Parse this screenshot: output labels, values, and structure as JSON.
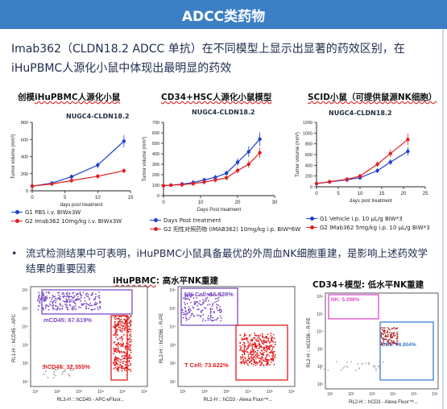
{
  "banner": {
    "title": "ADCC类药物"
  },
  "intro": {
    "line1": "Imab362（CLDN18.2 ADCC 单抗）在不同模型上显示出显著的药效区别，在",
    "line2": "iHuPBMC人源化小鼠中体现出最明显的药效"
  },
  "panels": [
    {
      "title_prefix": "创模",
      "title_underlined": "iHuPBMC人源化小鼠",
      "subtitle": "NUGC4-CLDN18.2",
      "legend": [
        {
          "label": "G1 PBS i.v. BIWx3W",
          "color": "#1f3fd0"
        },
        {
          "label": "G2 Imab362 10mg/kg i.v. BIWx3W",
          "color": "#e02020"
        }
      ]
    },
    {
      "title_prefix": "",
      "title_underlined": "CD34+HSC人源化小鼠模型",
      "subtitle": "NUGC4-CLDN18.2",
      "legend": [
        {
          "label": "Days Post treatment",
          "color": "#1f3fd0"
        },
        {
          "label": "G2 阳性对照药物 (IMAB362)  10mg/kg i.p. BIW*6W",
          "color": "#e02020"
        }
      ]
    },
    {
      "title_prefix": "",
      "title_underlined": "SCID小鼠（可提供鼠源NK细胞）",
      "subtitle": "NUGC4-CLDN18.2",
      "legend": [
        {
          "label": "G1 Vehicle  i.p. 10 μL/g BIW*3",
          "color": "#1f3fd0"
        },
        {
          "label": "G2 IMab362 5mg/kg i.p. 10 μL/g BIW*3",
          "color": "#e02020"
        }
      ]
    }
  ],
  "chart_data": [
    {
      "type": "line",
      "title": "NUGC4-CLDN18.2",
      "xlabel": "days post treatment",
      "ylabel": "Tumor volume (mm³)",
      "x_ticks": [
        "0",
        "5",
        "10",
        "15"
      ],
      "y_ticks": [
        "0",
        "200",
        "400",
        "600",
        "800"
      ],
      "xlim": [
        0,
        15
      ],
      "ylim": [
        0,
        800
      ],
      "series": [
        {
          "name": "G1 PBS i.v. BIWx3W",
          "color": "#1f3fd0",
          "x": [
            0,
            3,
            6,
            10,
            14
          ],
          "y": [
            55,
            90,
            165,
            300,
            580
          ]
        },
        {
          "name": "G2 Imab362 10mg/kg i.v. BIWx3W",
          "color": "#e02020",
          "x": [
            0,
            3,
            6,
            10,
            14
          ],
          "y": [
            55,
            80,
            120,
            170,
            235
          ]
        }
      ]
    },
    {
      "type": "line",
      "title": "NUGC4-CLDN18.2",
      "xlabel": "Days Post treatment",
      "ylabel": "Tumor volume (mm³)",
      "x_ticks": [
        "0",
        "10",
        "20",
        "30"
      ],
      "y_ticks": [
        "0",
        "100",
        "200",
        "300",
        "400",
        "500",
        "600",
        "700"
      ],
      "xlim": [
        0,
        30
      ],
      "ylim": [
        0,
        700
      ],
      "series": [
        {
          "name": "Days Post treatment",
          "color": "#1f3fd0",
          "x": [
            0,
            2,
            5,
            8,
            11,
            14,
            17,
            20,
            23,
            26
          ],
          "y": [
            95,
            100,
            110,
            125,
            150,
            175,
            215,
            320,
            420,
            540
          ]
        },
        {
          "name": "G2 阳性对照药物 (IMAB362)  10mg/kg i.p. BIW*6W",
          "color": "#e02020",
          "x": [
            0,
            2,
            5,
            8,
            11,
            14,
            17,
            20,
            23,
            26
          ],
          "y": [
            95,
            100,
            105,
            115,
            130,
            150,
            170,
            240,
            300,
            410
          ]
        }
      ]
    },
    {
      "type": "line",
      "title": "NUGC4-CLDN18.2",
      "xlabel": "days post treatment",
      "ylabel": "Tumor volume (mm³)",
      "x_ticks": [
        "0",
        "5",
        "10",
        "15",
        "20",
        "25"
      ],
      "y_ticks": [
        "0",
        "200",
        "400",
        "600",
        "800",
        "1000",
        "1200"
      ],
      "xlim": [
        0,
        25
      ],
      "ylim": [
        0,
        1200
      ],
      "series": [
        {
          "name": "G1 Vehicle  i.p. 10 μL/g BIW*3",
          "color": "#1f3fd0",
          "x": [
            0,
            3,
            7,
            10,
            14,
            17,
            21
          ],
          "y": [
            60,
            90,
            130,
            170,
            300,
            460,
            660
          ]
        },
        {
          "name": "G2 IMab362 5mg/kg i.p. 10 μL/g BIW*3",
          "color": "#e02020",
          "x": [
            0,
            3,
            7,
            10,
            14,
            17,
            21
          ],
          "y": [
            60,
            95,
            140,
            200,
            420,
            620,
            880
          ]
        }
      ]
    }
  ],
  "bullet": {
    "dot": "•",
    "text": "流式检测结果中可表明，iHuPBMC小鼠具备最优的外周血NK细胞重建，是影响上述药效学结果的重要因素"
  },
  "flow": {
    "left_title_underlined": "iHuPBMC",
    "left_title_rest": ": 高水平NK重建",
    "right_title_prefix": "CD34+模型",
    "right_title_rest": ": 低水平NK重建",
    "plot_a": {
      "ylabel": "RL1-H :: hCD45 - APC",
      "xlabel": "RL3-H :: hCD45 - APC-eFluor...",
      "gate_top": "mCD45: 67.619%",
      "gate_bottom": "hCD45: 32.355%"
    },
    "plot_b": {
      "ylabel": "RL2-H :: hCD56 - R-PE",
      "xlabel": "RL2-H :: hCD3 - Alexa Fluor™...",
      "gate_top": "NK Cell: 16.339%",
      "gate_bottom": "T Cell: 73.622%"
    },
    "plot_c": {
      "ylabel": "RL2-H :: hCD56 - R-PE",
      "xlabel": "RL2-H :: hCD3 - Alexa Fluor™...",
      "gate_top": "NK: 5.298%",
      "gate_bottom": "CD3: 78.804%"
    },
    "tick_labels": [
      "10¹",
      "10²",
      "10³",
      "10⁴",
      "10⁵",
      "10⁶"
    ],
    "colors": {
      "purple": "#7b4bc2",
      "red": "#e41a1a",
      "magenta": "#e04cc8",
      "blue": "#3b7fd0"
    }
  }
}
